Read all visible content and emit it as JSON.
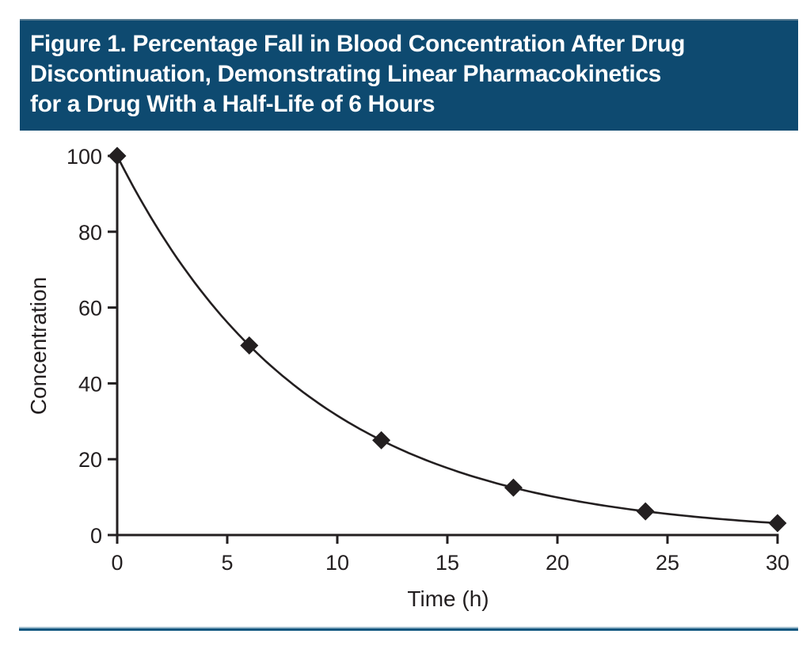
{
  "figure_header": {
    "title_lines": [
      "Figure 1. Percentage Fall in Blood Concentration After Drug",
      "Discontinuation, Demonstrating Linear Pharmacokinetics",
      "for a Drug With a Half-Life of 6 Hours"
    ],
    "bg_color": "#0e4a70",
    "border_color": "#567a91",
    "text_color": "#ffffff"
  },
  "divider": {
    "light_color": "#9fbccd",
    "dark_color": "#0e567f"
  },
  "chart_data": {
    "type": "line",
    "title": "Percentage Fall in Blood Concentration After Drug Discontinuation",
    "x": [
      0,
      6,
      12,
      18,
      24,
      30
    ],
    "y": [
      100,
      50,
      25,
      12.5,
      6.25,
      3.125
    ],
    "x_ticks": [
      "0",
      "5",
      "10",
      "15",
      "20",
      "25",
      "30"
    ],
    "y_ticks": [
      "0",
      "20",
      "40",
      "60",
      "80",
      "100"
    ],
    "xlabel": "Time (h)",
    "ylabel": "Concentration",
    "xlim": [
      0,
      30
    ],
    "ylim": [
      0,
      100
    ],
    "half_life_hours": 6,
    "marker": "diamond",
    "grid": false,
    "legend": false,
    "ink_color": "#231f20"
  }
}
